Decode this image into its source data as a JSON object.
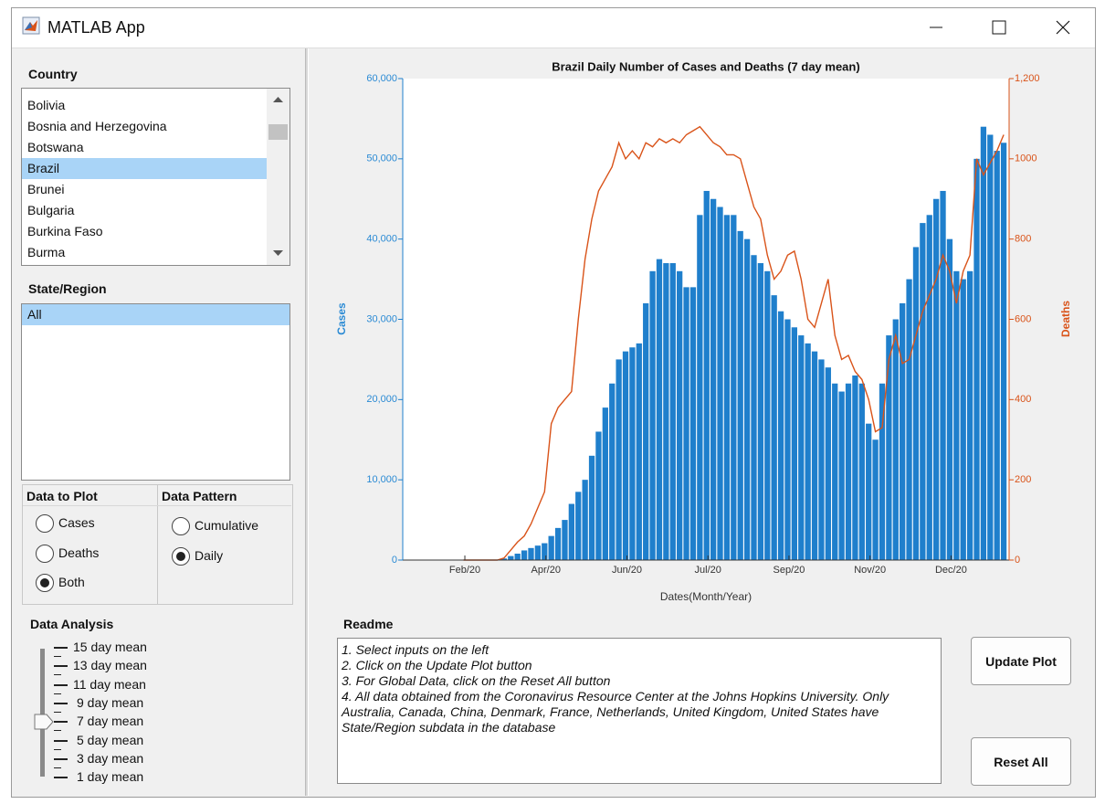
{
  "window": {
    "title": "MATLAB App"
  },
  "country": {
    "label": "Country",
    "items": [
      "Bolivia",
      "Bosnia and Herzegovina",
      "Botswana",
      "Brazil",
      "Brunei",
      "Bulgaria",
      "Burkina Faso",
      "Burma"
    ],
    "selected_index": 3
  },
  "state_region": {
    "label": "State/Region",
    "items": [
      "All"
    ],
    "selected_index": 0
  },
  "data_to_plot": {
    "label": "Data to Plot",
    "options": [
      "Cases",
      "Deaths",
      "Both"
    ],
    "selected_index": 2
  },
  "data_pattern": {
    "label": "Data Pattern",
    "options": [
      "Cumulative",
      "Daily"
    ],
    "selected_index": 1
  },
  "data_analysis": {
    "label": "Data Analysis",
    "ticks": [
      "15 day mean",
      "13 day mean",
      "11 day mean",
      "9 day mean",
      "7 day mean",
      "5 day mean",
      "3 day mean",
      "1 day mean"
    ],
    "selected_index": 4
  },
  "readme": {
    "label": "Readme",
    "lines": [
      "1. Select inputs on the left",
      "2. Click on the Update Plot button",
      "3. For Global Data, click on the Reset All button",
      "4. All data obtained from the Coronavirus Resource Center at the Johns Hopkins University. Only Australia, Canada, China, Denmark, France, Netherlands, United Kingdom, United States have State/Region subdata in the database"
    ]
  },
  "buttons": [
    "Update Plot",
    "Reset All"
  ],
  "chart_data": {
    "type": "bar",
    "title": "Brazil Daily Number of Cases and Deaths (7 day mean)",
    "x_label": "Dates(Month/Year)",
    "y_label": "Cases",
    "y2_label": "Deaths",
    "x": [
      45,
      50,
      55,
      60,
      65,
      70,
      75,
      80,
      85,
      90,
      95,
      100,
      105,
      110,
      115,
      120,
      125,
      130,
      135,
      140,
      145,
      150,
      155,
      160,
      165,
      170,
      175,
      180,
      185,
      190,
      195,
      200,
      205,
      210,
      215,
      220,
      225,
      230,
      235,
      240,
      245,
      250,
      255,
      260,
      265,
      270,
      275,
      280,
      285,
      290,
      295,
      300,
      305,
      310,
      315,
      320,
      325,
      330,
      335,
      340,
      345,
      350,
      355,
      360,
      365,
      370,
      375,
      380,
      385,
      390,
      395,
      400,
      405,
      410,
      415,
      420,
      425,
      430,
      435,
      440,
      445
    ],
    "xlim": [
      0,
      449
    ],
    "xticks": [
      {
        "value": 46,
        "label": "Feb/20"
      },
      {
        "value": 106,
        "label": "Apr/20"
      },
      {
        "value": 166,
        "label": "Jun/20"
      },
      {
        "value": 226,
        "label": "Jul/20"
      },
      {
        "value": 286,
        "label": "Sep/20"
      },
      {
        "value": 346,
        "label": "Nov/20"
      },
      {
        "value": 406,
        "label": "Dec/20"
      }
    ],
    "ylim": [
      0,
      60000
    ],
    "yticks": [
      0,
      {
        "value": 10000,
        "label": "10,000"
      },
      {
        "value": 20000,
        "label": "20,000"
      },
      {
        "value": 30000,
        "label": "30,000"
      },
      {
        "value": 40000,
        "label": "40,000"
      },
      {
        "value": 50000,
        "label": "50,000"
      },
      {
        "value": 60000,
        "label": "60,000"
      }
    ],
    "y2lim": [
      0,
      1200
    ],
    "y2ticks": [
      0,
      200,
      400,
      600,
      800,
      1000,
      {
        "value": 1200,
        "label": "1,200"
      }
    ],
    "series": [
      {
        "name": "Cases",
        "type": "bar",
        "color": "#1f7fcc",
        "values": [
          0,
          0,
          0,
          0,
          0,
          0,
          200,
          500,
          800,
          1200,
          1500,
          1800,
          2100,
          3000,
          4000,
          5000,
          7000,
          8500,
          10000,
          13000,
          16000,
          19000,
          22000,
          25000,
          26000,
          26500,
          27000,
          32000,
          36000,
          37500,
          37000,
          37000,
          36000,
          34000,
          34000,
          43000,
          46000,
          45000,
          44000,
          43000,
          43000,
          41000,
          40000,
          38000,
          37000,
          36000,
          33000,
          31000,
          30000,
          29000,
          28000,
          27000,
          26000,
          25000,
          24000,
          22000,
          21000,
          22000,
          23000,
          22000,
          17000,
          15000,
          22000,
          28000,
          30000,
          32000,
          35000,
          39000,
          42000,
          43000,
          45000,
          46000,
          40000,
          36000,
          35000,
          36000,
          50000,
          54000,
          53000,
          51000,
          52000
        ]
      },
      {
        "name": "Deaths",
        "type": "line",
        "axis": "y2",
        "color": "#d95319",
        "values": [
          0,
          0,
          0,
          0,
          0,
          0,
          5,
          25,
          45,
          60,
          90,
          130,
          170,
          340,
          380,
          400,
          420,
          600,
          750,
          850,
          920,
          950,
          980,
          1040,
          1000,
          1020,
          1000,
          1040,
          1030,
          1050,
          1040,
          1050,
          1040,
          1060,
          1070,
          1080,
          1060,
          1040,
          1030,
          1010,
          1010,
          1000,
          940,
          880,
          850,
          760,
          700,
          720,
          760,
          770,
          700,
          600,
          580,
          640,
          700,
          560,
          500,
          510,
          470,
          450,
          400,
          320,
          330,
          500,
          560,
          490,
          500,
          560,
          620,
          660,
          700,
          760,
          720,
          640,
          720,
          760,
          1000,
          960,
          990,
          1020,
          1060
        ]
      }
    ]
  }
}
